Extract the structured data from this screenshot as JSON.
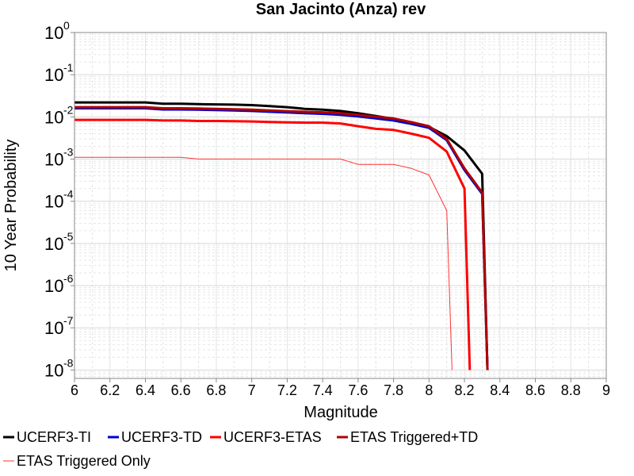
{
  "chart_data": {
    "type": "line",
    "title": "San Jacinto (Anza) rev",
    "xlabel": "Magnitude",
    "ylabel": "10 Year Probability",
    "xlim": [
      6,
      9
    ],
    "ylim_log10": [
      -8.2,
      0
    ],
    "y_scale": "log",
    "grid": true,
    "legend_position": "bottom",
    "x_ticks": [
      {
        "value": 6,
        "label": "6"
      },
      {
        "value": 6.2,
        "label": "6.2"
      },
      {
        "value": 6.4,
        "label": "6.4"
      },
      {
        "value": 6.6,
        "label": "6.6"
      },
      {
        "value": 6.8,
        "label": "6.8"
      },
      {
        "value": 7,
        "label": "7"
      },
      {
        "value": 7.2,
        "label": "7.2"
      },
      {
        "value": 7.4,
        "label": "7.4"
      },
      {
        "value": 7.6,
        "label": "7.6"
      },
      {
        "value": 7.8,
        "label": "7.8"
      },
      {
        "value": 8,
        "label": "8"
      },
      {
        "value": 8.2,
        "label": "8.2"
      },
      {
        "value": 8.4,
        "label": "8.4"
      },
      {
        "value": 8.6,
        "label": "8.6"
      },
      {
        "value": 8.8,
        "label": "8.8"
      },
      {
        "value": 9,
        "label": "9"
      }
    ],
    "y_ticks": [
      {
        "exp": 0,
        "base": "10",
        "sup": "0"
      },
      {
        "exp": -1,
        "base": "10",
        "sup": "-1"
      },
      {
        "exp": -2,
        "base": "10",
        "sup": "-2"
      },
      {
        "exp": -3,
        "base": "10",
        "sup": "-3"
      },
      {
        "exp": -4,
        "base": "10",
        "sup": "-4"
      },
      {
        "exp": -5,
        "base": "10",
        "sup": "-5"
      },
      {
        "exp": -6,
        "base": "10",
        "sup": "-6"
      },
      {
        "exp": -7,
        "base": "10",
        "sup": "-7"
      },
      {
        "exp": -8,
        "base": "10",
        "sup": "-8"
      }
    ],
    "series": [
      {
        "name": "UCERF3-TI",
        "color": "#000000",
        "width": 3,
        "points": [
          [
            6,
            0.022
          ],
          [
            6.1,
            0.022
          ],
          [
            6.2,
            0.022
          ],
          [
            6.3,
            0.022
          ],
          [
            6.4,
            0.022
          ],
          [
            6.5,
            0.0205
          ],
          [
            6.6,
            0.0205
          ],
          [
            6.7,
            0.02
          ],
          [
            6.8,
            0.0198
          ],
          [
            6.9,
            0.0195
          ],
          [
            7,
            0.019
          ],
          [
            7.1,
            0.018
          ],
          [
            7.2,
            0.017
          ],
          [
            7.3,
            0.0155
          ],
          [
            7.4,
            0.0148
          ],
          [
            7.5,
            0.0138
          ],
          [
            7.6,
            0.0122
          ],
          [
            7.7,
            0.0105
          ],
          [
            7.8,
            0.009
          ],
          [
            7.9,
            0.0072
          ],
          [
            8,
            0.0058
          ],
          [
            8.1,
            0.0035
          ],
          [
            8.2,
            0.0016
          ],
          [
            8.3,
            0.00045
          ],
          [
            8.33,
            1e-08
          ]
        ]
      },
      {
        "name": "UCERF3-TD",
        "color": "#0000cc",
        "width": 3,
        "points": [
          [
            6,
            0.016
          ],
          [
            6.1,
            0.016
          ],
          [
            6.2,
            0.016
          ],
          [
            6.3,
            0.016
          ],
          [
            6.4,
            0.016
          ],
          [
            6.5,
            0.015
          ],
          [
            6.6,
            0.015
          ],
          [
            6.7,
            0.0148
          ],
          [
            6.8,
            0.0145
          ],
          [
            6.9,
            0.0142
          ],
          [
            7,
            0.0138
          ],
          [
            7.1,
            0.0132
          ],
          [
            7.2,
            0.0127
          ],
          [
            7.3,
            0.0122
          ],
          [
            7.4,
            0.0118
          ],
          [
            7.5,
            0.0112
          ],
          [
            7.6,
            0.0103
          ],
          [
            7.7,
            0.0092
          ],
          [
            7.8,
            0.0082
          ],
          [
            7.9,
            0.0068
          ],
          [
            8,
            0.0055
          ],
          [
            8.1,
            0.0028
          ],
          [
            8.2,
            0.00055
          ],
          [
            8.3,
            0.00015
          ],
          [
            8.33,
            1e-08
          ]
        ]
      },
      {
        "name": "UCERF3-ETAS",
        "color": "#ff0000",
        "width": 3,
        "points": [
          [
            6,
            0.0085
          ],
          [
            6.1,
            0.0085
          ],
          [
            6.2,
            0.0085
          ],
          [
            6.3,
            0.0085
          ],
          [
            6.4,
            0.0085
          ],
          [
            6.5,
            0.0082
          ],
          [
            6.6,
            0.0082
          ],
          [
            6.7,
            0.008
          ],
          [
            6.8,
            0.008
          ],
          [
            6.9,
            0.0079
          ],
          [
            7,
            0.0078
          ],
          [
            7.1,
            0.0076
          ],
          [
            7.2,
            0.0074
          ],
          [
            7.3,
            0.0073
          ],
          [
            7.4,
            0.0073
          ],
          [
            7.5,
            0.007
          ],
          [
            7.6,
            0.006
          ],
          [
            7.7,
            0.0052
          ],
          [
            7.8,
            0.0049
          ],
          [
            7.9,
            0.004
          ],
          [
            8,
            0.0032
          ],
          [
            8.1,
            0.0015
          ],
          [
            8.2,
            0.0002
          ],
          [
            8.23,
            1e-08
          ]
        ]
      },
      {
        "name": "ETAS Triggered+TD",
        "color": "#b00000",
        "width": 3,
        "points": [
          [
            6,
            0.017
          ],
          [
            6.1,
            0.017
          ],
          [
            6.2,
            0.017
          ],
          [
            6.3,
            0.017
          ],
          [
            6.4,
            0.017
          ],
          [
            6.5,
            0.016
          ],
          [
            6.6,
            0.016
          ],
          [
            6.7,
            0.0158
          ],
          [
            6.8,
            0.0155
          ],
          [
            6.9,
            0.0152
          ],
          [
            7,
            0.0148
          ],
          [
            7.1,
            0.0142
          ],
          [
            7.2,
            0.0137
          ],
          [
            7.3,
            0.0132
          ],
          [
            7.4,
            0.0128
          ],
          [
            7.5,
            0.0122
          ],
          [
            7.6,
            0.0112
          ],
          [
            7.7,
            0.0101
          ],
          [
            7.8,
            0.0092
          ],
          [
            7.9,
            0.0075
          ],
          [
            8,
            0.006
          ],
          [
            8.1,
            0.003
          ],
          [
            8.2,
            0.0006
          ],
          [
            8.3,
            0.00016
          ],
          [
            8.33,
            1e-08
          ]
        ]
      },
      {
        "name": "ETAS Triggered Only",
        "color": "#ff3333",
        "width": 1,
        "points": [
          [
            6,
            0.0011
          ],
          [
            6.1,
            0.0011
          ],
          [
            6.2,
            0.0011
          ],
          [
            6.3,
            0.0011
          ],
          [
            6.4,
            0.0011
          ],
          [
            6.5,
            0.0011
          ],
          [
            6.6,
            0.0011
          ],
          [
            6.7,
            0.001
          ],
          [
            6.8,
            0.001
          ],
          [
            6.9,
            0.001
          ],
          [
            7,
            0.001
          ],
          [
            7.1,
            0.001
          ],
          [
            7.2,
            0.001
          ],
          [
            7.3,
            0.001
          ],
          [
            7.4,
            0.001
          ],
          [
            7.5,
            0.001
          ],
          [
            7.6,
            0.00075
          ],
          [
            7.7,
            0.00075
          ],
          [
            7.8,
            0.00075
          ],
          [
            7.9,
            0.0006
          ],
          [
            8,
            0.00042
          ],
          [
            8.1,
            6e-05
          ],
          [
            8.13,
            1e-08
          ]
        ]
      }
    ]
  }
}
